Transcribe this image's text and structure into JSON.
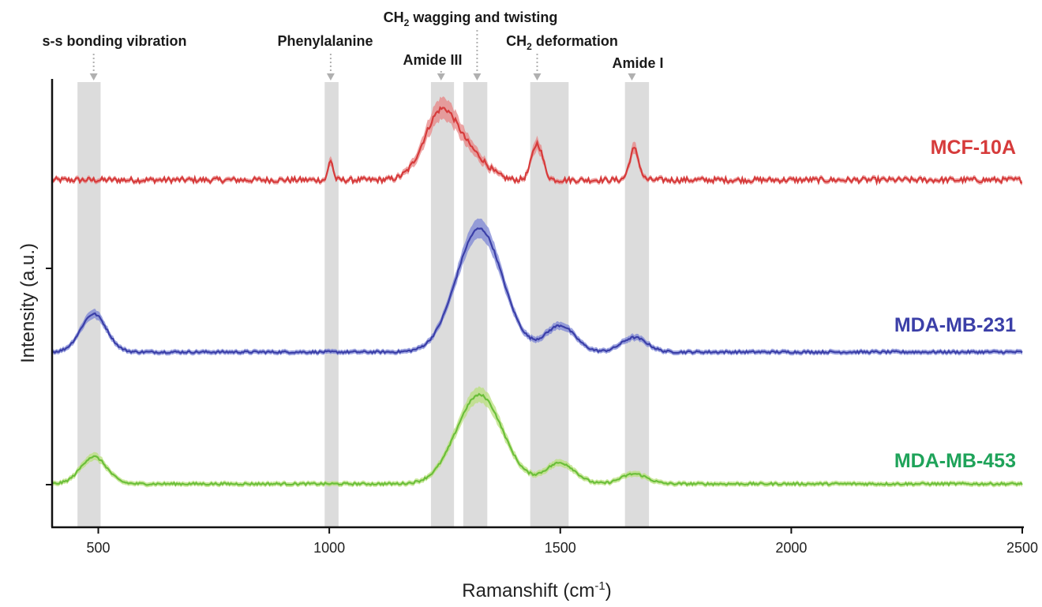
{
  "chart_data": {
    "type": "line",
    "xlabel": "Ramanshift (cm-1)",
    "xlabel_parts": {
      "main": "Ramanshift (cm",
      "sup": "-1",
      "close": ")"
    },
    "ylabel": "Intensity (a.u.)",
    "xlim": [
      400,
      2500
    ],
    "xticks": [
      500,
      1000,
      1500,
      2000,
      2500
    ],
    "grid": false,
    "legend": "inline-right",
    "bands": [
      {
        "label": "s-s bonding vibration",
        "range": [
          455,
          505
        ],
        "center": 490
      },
      {
        "label": "Phenylalanine",
        "range": [
          990,
          1020
        ],
        "center": 1003
      },
      {
        "label": "Amide III",
        "range": [
          1220,
          1270
        ],
        "center": 1242
      },
      {
        "label": "CH2 wagging and twisting",
        "label_main": "CH",
        "label_sub": "2",
        "label_rest": " wagging and twisting",
        "range": [
          1290,
          1342
        ],
        "center": 1320
      },
      {
        "label": "CH2 deformation",
        "label_main": "CH",
        "label_sub": "2",
        "label_rest": " deformation",
        "range": [
          1435,
          1518
        ],
        "center": 1450
      },
      {
        "label": "Amide I",
        "range": [
          1640,
          1692
        ],
        "center": 1655
      }
    ],
    "series": [
      {
        "name": "MCF-10A",
        "color": "#d63b3b",
        "band_color": "#e88585",
        "baseline": 0.0,
        "peaks": [
          {
            "x": 1003,
            "height": 0.22,
            "width": 5
          },
          {
            "x": 1245,
            "height": 0.78,
            "width": 38
          },
          {
            "x": 1320,
            "height": 0.18,
            "width": 30
          },
          {
            "x": 1450,
            "height": 0.4,
            "width": 12
          },
          {
            "x": 1660,
            "height": 0.34,
            "width": 10
          }
        ]
      },
      {
        "name": "MDA-MB-231",
        "color": "#3b3fa8",
        "band_color": "#7c86d6",
        "baseline": 0.0,
        "peaks": [
          {
            "x": 490,
            "height": 0.42,
            "width": 28
          },
          {
            "x": 1325,
            "height": 1.36,
            "width": 50
          },
          {
            "x": 1500,
            "height": 0.29,
            "width": 32
          },
          {
            "x": 1660,
            "height": 0.16,
            "width": 28
          }
        ]
      },
      {
        "name": "MDA-MB-453",
        "color": "#6bbf3a",
        "band_color": "#b9e07e",
        "baseline": 0.0,
        "peaks": [
          {
            "x": 490,
            "height": 0.3,
            "width": 28
          },
          {
            "x": 1325,
            "height": 0.98,
            "width": 50
          },
          {
            "x": 1500,
            "height": 0.23,
            "width": 32
          },
          {
            "x": 1660,
            "height": 0.11,
            "width": 28
          }
        ]
      }
    ]
  }
}
